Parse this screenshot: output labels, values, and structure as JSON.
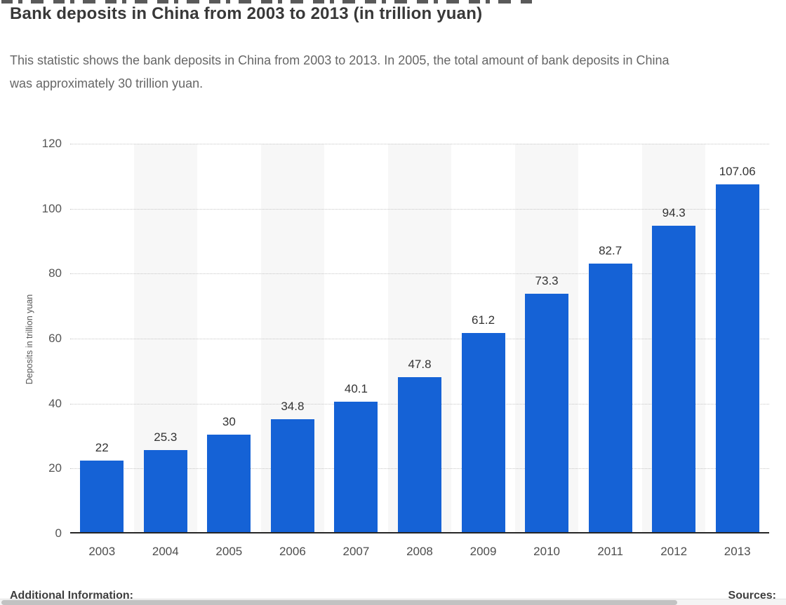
{
  "header": {
    "title": "Bank deposits in China from 2003 to 2013 (in trillion yuan)",
    "subtitle_lines": [
      "This statistic shows the bank deposits in China from 2003 to 2013. In 2005, the total amount of bank deposits in China",
      "was approximately 30 trillion yuan."
    ]
  },
  "chart_data": {
    "type": "bar",
    "title": "Bank deposits in China from 2003 to 2013 (in trillion yuan)",
    "categories": [
      "2003",
      "2004",
      "2005",
      "2006",
      "2007",
      "2008",
      "2009",
      "2010",
      "2011",
      "2012",
      "2013"
    ],
    "values": [
      22,
      25.3,
      30,
      34.8,
      40.1,
      47.8,
      61.2,
      73.3,
      82.7,
      94.3,
      107.06
    ],
    "value_labels": [
      "22",
      "25.3",
      "30",
      "34.8",
      "40.1",
      "47.8",
      "61.2",
      "73.3",
      "82.7",
      "94.3",
      "107.06"
    ],
    "xlabel": "",
    "ylabel": "Deposits in trillion yuan",
    "ylim": [
      0,
      120
    ],
    "yticks": [
      0,
      20,
      40,
      60,
      80,
      100,
      120
    ],
    "grid": "horizontal-dotted",
    "legend": "none",
    "bar_color": "#1562d6",
    "band_color": "#f7f7f7"
  },
  "footer": {
    "additional_info_label": "Additional Information:",
    "sources_label": "Sources:"
  }
}
